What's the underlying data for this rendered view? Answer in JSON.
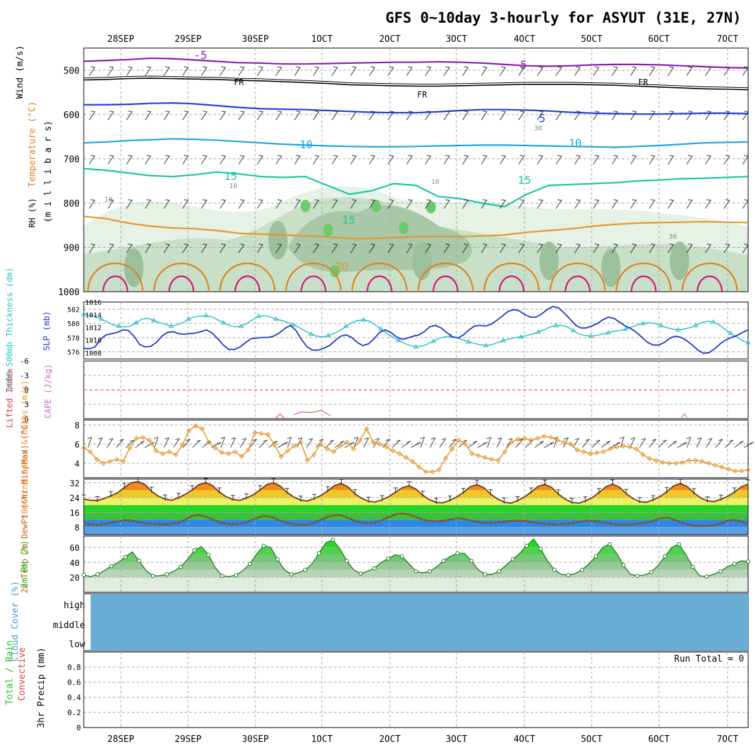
{
  "title": "GFS 0~10day 3-hourly for ASYUT (31E, 27N)",
  "dates": [
    "28SEP",
    "29SEP",
    "30SEP",
    "1OCT",
    "2OCT",
    "3OCT",
    "4OCT",
    "5OCT",
    "6OCT",
    "7OCT"
  ],
  "colors": {
    "grid": "#aaaaaa",
    "purple": "#8a1cb0",
    "blue": "#1d3fd6",
    "cyan": "#1ea4e6",
    "teal": "#14c8a0",
    "orange": "#e0821e",
    "magenta": "#d6147a",
    "darkblue": "#1d36c8",
    "aqua": "#2ec0c8",
    "lightorange": "#e6962a",
    "green": "#22c222",
    "cloud": "#6aaed6"
  },
  "chart_data": [
    {
      "panel": "upper-air",
      "type": "contour",
      "ylabel_parts": [
        "Wind (m/s)",
        "Temperature (°C)",
        "RH (%)",
        "(m i l l i b a r s)"
      ],
      "ylim": [
        1000,
        450
      ],
      "yticks": [
        "500",
        "600",
        "700",
        "800",
        "900",
        "1000"
      ],
      "yvals": [
        500,
        600,
        700,
        800,
        900,
        1000
      ],
      "contour_labels": {
        "purple": "-5",
        "black": "FR",
        "blue": "5",
        "cyan": "10",
        "teal": "15",
        "orange": "20",
        "rh": [
          "10",
          "30",
          "10",
          "10",
          "30"
        ]
      },
      "levels": {
        "purple": [
          480,
          478,
          476,
          473,
          474,
          477,
          480,
          483,
          484,
          486,
          486,
          485,
          484,
          483,
          482,
          482,
          481,
          482,
          484,
          487,
          490,
          491,
          490,
          488,
          487,
          487,
          488,
          490,
          492,
          494,
          495
        ],
        "black": [
          522,
          521,
          519,
          518,
          519,
          520,
          521,
          523,
          524,
          526,
          528,
          530,
          533,
          534,
          535,
          536,
          536,
          535,
          534,
          533,
          532,
          532,
          532,
          533,
          534,
          536,
          538,
          540,
          542,
          543,
          544
        ],
        "blue": [
          578,
          578,
          577,
          575,
          574,
          576,
          580,
          584,
          587,
          588,
          589,
          591,
          593,
          595,
          596,
          596,
          594,
          591,
          589,
          589,
          590,
          592,
          595,
          597,
          598,
          599,
          599,
          598,
          597,
          597,
          598
        ],
        "cyan": [
          664,
          662,
          659,
          657,
          655,
          656,
          658,
          661,
          664,
          667,
          669,
          671,
          672,
          673,
          673,
          672,
          671,
          670,
          669,
          669,
          670,
          671,
          672,
          673,
          674,
          672,
          670,
          667,
          664,
          663,
          662
        ],
        "teal": [
          722,
          726,
          732,
          738,
          740,
          736,
          730,
          734,
          740,
          742,
          740,
          760,
          780,
          772,
          756,
          760,
          785,
          790,
          800,
          808,
          780,
          760,
          758,
          756,
          754,
          750,
          748,
          745,
          744,
          742,
          740
        ],
        "orange": [
          830,
          835,
          845,
          852,
          856,
          858,
          862,
          868,
          870,
          872,
          874,
          876,
          880,
          880,
          878,
          876,
          875,
          876,
          874,
          872,
          866,
          862,
          858,
          852,
          848,
          845,
          844,
          843,
          842,
          843,
          844
        ]
      }
    },
    {
      "panel": "thickness-slp",
      "type": "line",
      "ylabel_left": "1000-500mb Thickness (dm)",
      "ylabel_right": "SLP (mb)",
      "ylim_left": [
        575,
        583
      ],
      "ylim_right": [
        1007,
        1016
      ],
      "yticks_left": [
        "582",
        "580",
        "578",
        "576"
      ],
      "yticks_right": [
        "1016",
        "1014",
        "1012",
        "1010",
        "1008"
      ],
      "series": [
        {
          "values": [
            581.3,
            581.1,
            581.0,
            580.6,
            580.2,
            579.8,
            579.6,
            579.5,
            579.6,
            580.1,
            580.6,
            580.7,
            580.4,
            580.1,
            579.9,
            579.6,
            579.8,
            580.1,
            580.6,
            580.9,
            581.0,
            581.1,
            580.9,
            580.5,
            580.1,
            579.7,
            579.5,
            579.6,
            580.0,
            580.5,
            581.0,
            581.1,
            580.9,
            580.6,
            580.4,
            580.1,
            579.8,
            579.4,
            578.9,
            578.5,
            578.2,
            578.1,
            578.3,
            578.6,
            579.0,
            579.6,
            580.1,
            580.4,
            580.5,
            580.3,
            579.8,
            579.2,
            578.6,
            578.1,
            577.6,
            577.2,
            576.9,
            576.7,
            576.8,
            577.1,
            577.5,
            577.9,
            578.1,
            578.2,
            578.0,
            577.7,
            577.4,
            577.2,
            577.0,
            576.9,
            577.0,
            577.3,
            577.6,
            577.8,
            578.0,
            578.1,
            578.3,
            578.5,
            578.8,
            579.1,
            579.5,
            579.7,
            579.7,
            579.5,
            579.0,
            578.5,
            578.3,
            578.2,
            578.3,
            578.5,
            578.7,
            578.9,
            579.0,
            579.2,
            579.5,
            579.8,
            580.0,
            580.1,
            580.0,
            579.7,
            579.4,
            579.2,
            579.1,
            579.2,
            579.4,
            579.7,
            580.1,
            580.3,
            580.2,
            579.8,
            579.2,
            578.6,
            578.1,
            577.6,
            577.3
          ]
        },
        {
          "values": [
            1008.7,
            1008.6,
            1008.9,
            1010.1,
            1010.8,
            1011.0,
            1011.2,
            1011.6,
            1011.5,
            1010.6,
            1009.3,
            1008.9,
            1009.0,
            1009.6,
            1010.6,
            1011.2,
            1011.3,
            1011.0,
            1010.9,
            1011.0,
            1011.1,
            1011.3,
            1011.6,
            1011.1,
            1010.2,
            1009.2,
            1008.5,
            1008.5,
            1008.9,
            1009.6,
            1010.2,
            1010.3,
            1010.4,
            1010.4,
            1010.6,
            1011.1,
            1011.8,
            1012.3,
            1011.5,
            1010.1,
            1008.9,
            1008.4,
            1008.4,
            1008.7,
            1009.1,
            1009.9,
            1010.6,
            1010.8,
            1010.4,
            1009.6,
            1009.1,
            1009.4,
            1010.2,
            1011.2,
            1011.6,
            1011.2,
            1010.5,
            1010.1,
            1010.3,
            1010.6,
            1010.8,
            1011.3,
            1012.1,
            1012.3,
            1011.9,
            1011.2,
            1010.5,
            1010.3,
            1010.8,
            1011.6,
            1012.2,
            1012.3,
            1012.2,
            1012.5,
            1013.1,
            1013.8,
            1014.5,
            1014.8,
            1014.6,
            1014.0,
            1013.6,
            1013.6,
            1014.1,
            1014.8,
            1015.3,
            1015.1,
            1014.3,
            1013.4,
            1012.4,
            1011.9,
            1011.9,
            1012.2,
            1012.6,
            1013.2,
            1013.6,
            1013.4,
            1012.8,
            1012.2,
            1011.8,
            1011.2,
            1010.4,
            1009.6,
            1009.2,
            1009.2,
            1009.6,
            1010.3,
            1010.6,
            1010.4,
            1009.9,
            1009.2,
            1008.4,
            1007.9,
            1008.0,
            1008.6,
            1009.4,
            1010.0,
            1010.4,
            1010.7,
            1011.2,
            1011.6
          ]
        }
      ]
    },
    {
      "panel": "cape-li",
      "type": "line",
      "ylabel_left": "Lifted Index",
      "ylabel_right": "CAPE (J/kg)",
      "ylim": [
        6,
        -6
      ],
      "yticks": [
        "-6",
        "-3",
        "0",
        "3",
        "6"
      ],
      "yvals": [
        -6,
        -3,
        0,
        3,
        6
      ]
    },
    {
      "panel": "wind10m",
      "type": "line",
      "ylabel": "10m Wind Speed & Barbs (m/s)",
      "ylim": [
        2.5,
        8.5
      ],
      "yticks": [
        "8",
        "6",
        "4"
      ],
      "yvals": [
        8,
        6,
        4
      ],
      "series": [
        {
          "values": [
            5.6,
            5.2,
            4.4,
            4.0,
            4.2,
            4.4,
            4.2,
            5.6,
            6.6,
            6.7,
            6.4,
            5.3,
            5.0,
            5.2,
            4.9,
            5.9,
            7.4,
            7.9,
            7.6,
            6.2,
            5.6,
            5.1,
            5.0,
            5.2,
            4.7,
            5.4,
            7.2,
            7.1,
            7.0,
            5.9,
            4.7,
            5.3,
            5.8,
            6.2,
            4.3,
            4.9,
            6.0,
            5.5,
            5.2,
            5.8,
            6.2,
            5.5,
            6.4,
            7.6,
            6.2,
            6.0,
            5.7,
            5.3,
            5.0,
            4.6,
            4.2,
            3.6,
            3.1,
            3.1,
            3.3,
            4.5,
            5.5,
            6.4,
            6.0,
            5.0,
            4.8,
            4.6,
            4.4,
            4.3,
            5.2,
            6.2,
            6.5,
            6.6,
            6.4,
            6.6,
            6.8,
            6.7,
            6.4,
            6.2,
            6.0,
            5.4,
            5.2,
            5.0,
            5.1,
            5.2,
            5.5,
            5.7,
            5.8,
            5.7,
            5.5,
            4.9,
            4.5,
            4.3,
            4.1,
            4.0,
            4.0,
            4.1,
            4.3,
            4.3,
            4.2,
            4.0,
            3.8,
            3.6,
            3.4,
            3.2,
            3.2,
            3.3
          ]
        }
      ]
    },
    {
      "panel": "temp2m",
      "type": "area",
      "ylabel": "2m Temp 2m DewPt (6hr Min/Max) (°C)",
      "ylim": [
        4,
        34
      ],
      "yticks": [
        "32",
        "24",
        "16",
        "8"
      ],
      "yvals": [
        32,
        24,
        16,
        8
      ],
      "series": [
        {
          "values": [
            23.2,
            22.6,
            22.4,
            23.5,
            25.0,
            26.6,
            29.5,
            32.0,
            32.6,
            31.2,
            27.4,
            24.8,
            23.2,
            22.6,
            24.0,
            25.8,
            28.2,
            31.0,
            32.1,
            30.5,
            27.0,
            24.5,
            23.0,
            22.5,
            23.8,
            25.5,
            28.2,
            31.0,
            32.0,
            30.2,
            26.8,
            24.3,
            22.6,
            22.2,
            23.5,
            25.2,
            27.7,
            30.5,
            31.6,
            29.7,
            26.1,
            23.6,
            22.0,
            21.6,
            22.8,
            24.5,
            27.0,
            29.4,
            30.4,
            28.6,
            25.3,
            22.8,
            21.4,
            21.2,
            22.6,
            24.3,
            26.8,
            29.8,
            31.0,
            29.4,
            26.0,
            23.3,
            21.6,
            21.0,
            22.4,
            24.3,
            27.0,
            30.0,
            31.2,
            29.5,
            26.0,
            23.2,
            21.4,
            21.0,
            22.2,
            24.0,
            26.7,
            29.8,
            31.3,
            29.7,
            26.2,
            23.5,
            21.8,
            21.5,
            22.8,
            24.6,
            27.2,
            30.3,
            31.6,
            30.0,
            26.6,
            23.8,
            22.2,
            21.8,
            23.1,
            24.7,
            27.0,
            29.8,
            31.3
          ]
        },
        {
          "values": [
            10.2,
            9.6,
            9.3,
            9.8,
            10.5,
            11.2,
            11.8,
            11.6,
            10.8,
            10.2,
            9.8,
            9.6,
            9.6,
            9.9,
            10.6,
            12.2,
            14.1,
            14.6,
            13.8,
            12.1,
            10.7,
            9.9,
            9.6,
            9.8,
            10.7,
            12.2,
            13.6,
            14.1,
            13.1,
            11.5,
            10.4,
            9.6,
            9.2,
            9.5,
            10.4,
            12.0,
            13.6,
            14.6,
            14.4,
            13.0,
            11.5,
            10.6,
            10.2,
            10.6,
            11.8,
            13.5,
            15.0,
            15.6,
            14.8,
            13.5,
            12.2,
            11.4,
            11.1,
            11.4,
            12.1,
            12.8,
            12.6,
            11.7,
            10.9,
            10.5,
            10.4,
            10.6,
            11.0,
            11.4,
            11.6,
            11.3,
            10.8,
            10.2,
            9.8,
            9.6,
            9.6,
            9.8,
            10.2,
            10.8,
            11.4,
            11.6,
            11.1,
            10.4,
            9.8,
            9.5,
            9.4,
            9.6,
            10.0,
            10.6,
            11.5,
            12.8,
            13.2,
            12.3,
            10.8,
            9.6,
            8.9,
            8.6,
            8.7,
            9.2,
            10.2,
            11.6,
            12.0,
            11.0,
            9.8
          ]
        }
      ]
    },
    {
      "panel": "rh2m",
      "type": "area",
      "ylabel": "2m RH (%)",
      "ylim": [
        0,
        75
      ],
      "yticks": [
        "60",
        "40",
        "20"
      ],
      "yvals": [
        60,
        40,
        20
      ],
      "series": [
        {
          "values": [
            23,
            21,
            24,
            29,
            35,
            40,
            47,
            54,
            42,
            29,
            22,
            22,
            24,
            28,
            34,
            44,
            56,
            61,
            50,
            33,
            22,
            21,
            23,
            29,
            38,
            51,
            62,
            60,
            44,
            30,
            24,
            26,
            30,
            38,
            52,
            66,
            70,
            58,
            42,
            30,
            25,
            28,
            32,
            40,
            45,
            50,
            48,
            38,
            28,
            26,
            28,
            34,
            42,
            48,
            52,
            52,
            42,
            30,
            24,
            24,
            28,
            36,
            44,
            52,
            62,
            71,
            58,
            42,
            30,
            24,
            23,
            25,
            30,
            38,
            48,
            60,
            64,
            52,
            36,
            24,
            22,
            23,
            27,
            36,
            48,
            60,
            64,
            50,
            34,
            22,
            21,
            24,
            28,
            34,
            38,
            42,
            41
          ]
        }
      ]
    },
    {
      "panel": "cloud",
      "type": "bar",
      "ylabel": "Cloud Cover (%)",
      "yticks": [
        "high",
        "middle",
        "low"
      ]
    },
    {
      "panel": "precip",
      "type": "bar",
      "ylabel_parts": [
        "Total / Rain",
        "Convective",
        "3hr Precip (mm)"
      ],
      "ylim": [
        0,
        1
      ],
      "yticks": [
        "0.8",
        "0.6",
        "0.4",
        "0.2",
        "0"
      ],
      "yvals": [
        0.8,
        0.6,
        0.4,
        0.2,
        0
      ],
      "annotation": "Run Total = 0"
    }
  ]
}
